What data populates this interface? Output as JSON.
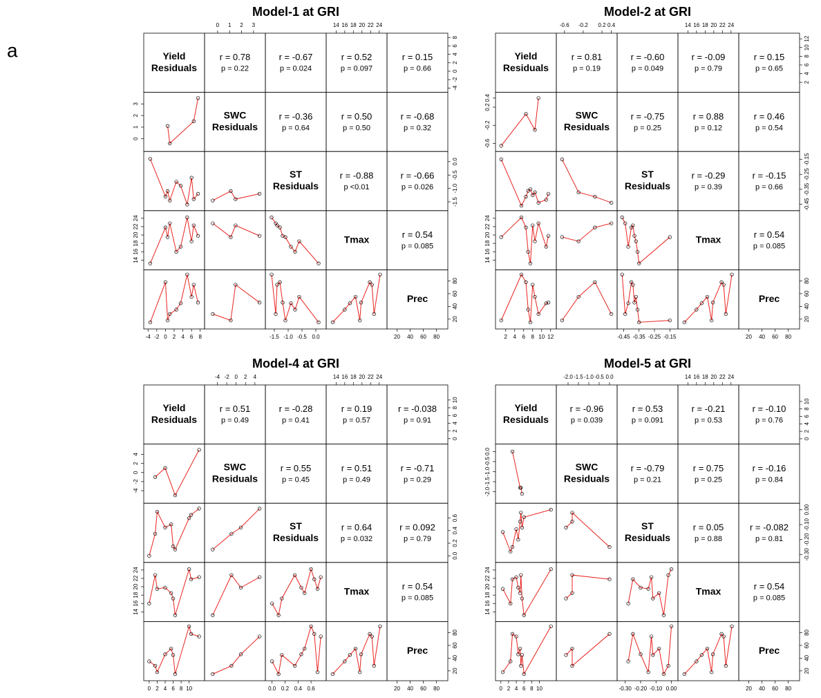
{
  "figure_label": "a",
  "panels": [
    {
      "title": "Model-1  at  GRI",
      "variables": [
        {
          "label_lines": [
            "Yield",
            "Residuals"
          ],
          "lim": [
            -4.2,
            8.2
          ],
          "ticks": [
            -4,
            -2,
            0,
            2,
            4,
            6,
            8
          ],
          "values": [
            -3.5,
            2.5,
            3.5,
            6.0,
            0.5,
            7.5,
            0.0,
            6.5,
            1.0,
            5.0
          ]
        },
        {
          "label_lines": [
            "SWC",
            "Residuals"
          ],
          "lim": [
            -0.8,
            3.7
          ],
          "ticks": [
            0,
            1,
            2,
            3
          ],
          "values": [
            null,
            null,
            null,
            null,
            1.1,
            3.5,
            null,
            1.5,
            -0.4,
            null
          ]
        },
        {
          "label_lines": [
            "ST",
            "Residuals"
          ],
          "lim": [
            -1.7,
            0.25
          ],
          "ticks": [
            -1.5,
            {
              "value": -1.0,
              "label": "-1.0"
            },
            -0.5,
            {
              "value": 0.0,
              "label": "0.0"
            }
          ],
          "values": [
            0.1,
            -0.75,
            -0.9,
            -0.6,
            -1.1,
            -1.2,
            -1.3,
            -1.4,
            -1.45,
            -1.6
          ]
        },
        {
          "label_lines": [
            "Tmax"
          ],
          "lim": [
            12.5,
            25
          ],
          "ticks": [
            14,
            16,
            18,
            20,
            22,
            24
          ],
          "values": [
            13.2,
            16.0,
            17.2,
            18.5,
            19.5,
            19.8,
            21.8,
            22.3,
            22.8,
            24.2
          ]
        },
        {
          "label_lines": [
            "Prec"
          ],
          "lim": [
            10,
            92
          ],
          "ticks": [
            20,
            40,
            60,
            80
          ],
          "values": [
            15,
            35,
            45,
            55,
            18,
            46,
            78,
            74,
            28,
            90
          ]
        }
      ],
      "correlations": [
        [
          {
            "r": "r = 0.78",
            "p": "p = 0.22"
          },
          {
            "r": "r = -0.67",
            "p": "p = 0.024"
          },
          {
            "r": "r = 0.52",
            "p": "p = 0.097"
          },
          {
            "r": "r = 0.15",
            "p": "p = 0.66"
          }
        ],
        [
          {
            "r": "r = -0.36",
            "p": "p = 0.64"
          },
          {
            "r": "r = 0.50",
            "p": "p = 0.50"
          },
          {
            "r": "r = -0.68",
            "p": "p = 0.32"
          }
        ],
        [
          {
            "r": "r = -0.88",
            "p": "p <0.01"
          },
          {
            "r": "r = -0.66",
            "p": "p = 0.026"
          }
        ],
        [
          {
            "r": "r = 0.54",
            "p": "p = 0.085"
          }
        ]
      ]
    },
    {
      "title": "Model-2  at  GRI",
      "variables": [
        {
          "label_lines": [
            "Yield",
            "Residuals"
          ],
          "lim": [
            0.5,
            12.5
          ],
          "ticks": [
            2,
            4,
            6,
            8,
            10,
            12
          ],
          "values": [
            7.5,
            7.0,
            11.0,
            8.5,
            1.0,
            11.5,
            6.5,
            8.0,
            9.3,
            5.5
          ]
        },
        {
          "label_lines": [
            "SWC",
            "Residuals"
          ],
          "lim": [
            -0.7,
            0.45
          ],
          "ticks": [
            -0.6,
            -0.2,
            0.2,
            0.4
          ],
          "values": [
            null,
            null,
            null,
            -0.3,
            -0.65,
            null,
            0.05,
            null,
            0.4,
            null
          ]
        },
        {
          "label_lines": [
            "ST",
            "Residuals"
          ],
          "lim": [
            -0.47,
            -0.12
          ],
          "ticks": [
            -0.45,
            -0.35,
            -0.25,
            -0.15
          ],
          "values": [
            -0.35,
            -0.36,
            -0.42,
            -0.37,
            -0.15,
            -0.38,
            -0.4,
            -0.39,
            -0.44,
            -0.46
          ]
        },
        {
          "label_lines": [
            "Tmax"
          ],
          "lim": [
            12.5,
            25
          ],
          "ticks": [
            14,
            16,
            18,
            20,
            22,
            24
          ],
          "values": [
            13.2,
            16.0,
            17.2,
            18.5,
            19.5,
            19.8,
            21.8,
            22.3,
            22.8,
            24.2
          ]
        },
        {
          "label_lines": [
            "Prec"
          ],
          "lim": [
            10,
            92
          ],
          "ticks": [
            20,
            40,
            60,
            80
          ],
          "values": [
            15,
            35,
            45,
            55,
            18,
            46,
            78,
            74,
            28,
            90
          ]
        }
      ],
      "correlations": [
        [
          {
            "r": "r = 0.81",
            "p": "p = 0.19"
          },
          {
            "r": "r = -0.60",
            "p": "p = 0.049"
          },
          {
            "r": "r = -0.09",
            "p": "p = 0.79"
          },
          {
            "r": "r = 0.15",
            "p": "p = 0.65"
          }
        ],
        [
          {
            "r": "r = -0.75",
            "p": "p = 0.25"
          },
          {
            "r": "r = 0.88",
            "p": "p = 0.12"
          },
          {
            "r": "r = 0.46",
            "p": "p = 0.54"
          }
        ],
        [
          {
            "r": "r = -0.29",
            "p": "p = 0.39"
          },
          {
            "r": "r = -0.15",
            "p": "p = 0.66"
          }
        ],
        [
          {
            "r": "r = 0.54",
            "p": "p = 0.085"
          }
        ]
      ]
    },
    {
      "title": "Model-4  at  GRI",
      "variables": [
        {
          "label_lines": [
            "Yield",
            "Residuals"
          ],
          "lim": [
            -0.5,
            13
          ],
          "ticks": [
            0,
            2,
            4,
            6,
            8,
            10
          ],
          "values": [
            6.5,
            0.0,
            6.0,
            5.5,
            2.0,
            4.0,
            10.5,
            12.5,
            1.5,
            10.0
          ]
        },
        {
          "label_lines": [
            "SWC",
            "Residuals"
          ],
          "lim": [
            -6,
            5.5
          ],
          "ticks": [
            -4,
            -2,
            0,
            2,
            4
          ],
          "values": [
            -5.0,
            null,
            null,
            null,
            null,
            1.0,
            null,
            5.0,
            -1.0,
            null
          ]
        },
        {
          "label_lines": [
            "ST",
            "Residuals"
          ],
          "lim": [
            -0.05,
            0.78
          ],
          "ticks": [
            {
              "value": 0.0,
              "label": "0.0"
            },
            0.2,
            0.4,
            0.6
          ],
          "values": [
            0.1,
            0.0,
            0.15,
            0.5,
            0.7,
            0.45,
            0.65,
            0.75,
            0.35,
            0.6
          ]
        },
        {
          "label_lines": [
            "Tmax"
          ],
          "lim": [
            12.5,
            25
          ],
          "ticks": [
            14,
            16,
            18,
            20,
            22,
            24
          ],
          "values": [
            13.2,
            16.0,
            17.2,
            18.5,
            19.5,
            19.8,
            21.8,
            22.3,
            22.8,
            24.2
          ]
        },
        {
          "label_lines": [
            "Prec"
          ],
          "lim": [
            10,
            92
          ],
          "ticks": [
            20,
            40,
            60,
            80
          ],
          "values": [
            15,
            35,
            45,
            55,
            18,
            46,
            78,
            74,
            28,
            90
          ]
        }
      ],
      "correlations": [
        [
          {
            "r": "r = 0.51",
            "p": "p = 0.49"
          },
          {
            "r": "r = -0.28",
            "p": "p = 0.41"
          },
          {
            "r": "r = 0.19",
            "p": "p = 0.57"
          },
          {
            "r": "r = -0.038",
            "p": "p = 0.91"
          }
        ],
        [
          {
            "r": "r = 0.55",
            "p": "p = 0.45"
          },
          {
            "r": "r = 0.51",
            "p": "p = 0.49"
          },
          {
            "r": "r = -0.71",
            "p": "p = 0.29"
          }
        ],
        [
          {
            "r": "r = 0.64",
            "p": "p = 0.032"
          },
          {
            "r": "r = 0.092",
            "p": "p = 0.79"
          }
        ],
        [
          {
            "r": "r = 0.54",
            "p": "p = 0.085"
          }
        ]
      ]
    },
    {
      "title": "Model-5  at  GRI",
      "variables": [
        {
          "label_lines": [
            "Yield",
            "Residuals"
          ],
          "lim": [
            -0.5,
            13.5
          ],
          "ticks": [
            0,
            2,
            4,
            6,
            8,
            10
          ],
          "values": [
            6.0,
            2.5,
            5.5,
            5.0,
            0.5,
            4.5,
            3.0,
            4.0,
            5.2,
            13.0
          ]
        },
        {
          "label_lines": [
            "SWC",
            "Residuals"
          ],
          "lim": [
            -2.4,
            0.2
          ],
          "ticks": [
            {
              "value": -2.0,
              "label": "-2.0"
            },
            -1.5,
            {
              "value": -1.0,
              "label": "-1.0"
            },
            -0.5,
            {
              "value": 0.0,
              "label": "0.0"
            }
          ],
          "values": [
            null,
            null,
            -2.1,
            -1.8,
            null,
            null,
            0.0,
            null,
            -1.8,
            null
          ]
        },
        {
          "label_lines": [
            "ST",
            "Residuals"
          ],
          "lim": [
            -0.33,
            0.02
          ],
          "ticks": [
            {
              "value": -0.3,
              "label": "-0.30"
            },
            {
              "value": -0.2,
              "label": "-0.20"
            },
            {
              "value": -0.1,
              "label": "-0.10"
            },
            {
              "value": 0.0,
              "label": "0.00"
            }
          ],
          "values": [
            -0.05,
            -0.28,
            -0.12,
            -0.08,
            -0.15,
            -0.2,
            -0.25,
            -0.13,
            -0.02,
            0.0
          ]
        },
        {
          "label_lines": [
            "Tmax"
          ],
          "lim": [
            12.5,
            25
          ],
          "ticks": [
            14,
            16,
            18,
            20,
            22,
            24
          ],
          "values": [
            13.2,
            16.0,
            17.2,
            18.5,
            19.5,
            19.8,
            21.8,
            22.3,
            22.8,
            24.2
          ]
        },
        {
          "label_lines": [
            "Prec"
          ],
          "lim": [
            10,
            92
          ],
          "ticks": [
            20,
            40,
            60,
            80
          ],
          "values": [
            15,
            35,
            45,
            55,
            18,
            46,
            78,
            74,
            28,
            90
          ]
        }
      ],
      "correlations": [
        [
          {
            "r": "r = -0.96",
            "p": "p = 0.039"
          },
          {
            "r": "r = 0.53",
            "p": "p = 0.091"
          },
          {
            "r": "r = -0.21",
            "p": "p = 0.53"
          },
          {
            "r": "r = -0.10",
            "p": "p = 0.76"
          }
        ],
        [
          {
            "r": "r = -0.79",
            "p": "p = 0.21"
          },
          {
            "r": "r = 0.75",
            "p": "p = 0.25"
          },
          {
            "r": "r = -0.16",
            "p": "p = 0.84"
          }
        ],
        [
          {
            "r": "r = 0.05",
            "p": "p = 0.88"
          },
          {
            "r": "r = -0.082",
            "p": "p = 0.81"
          }
        ],
        [
          {
            "r": "r = 0.54",
            "p": "p = 0.085"
          }
        ]
      ]
    }
  ]
}
